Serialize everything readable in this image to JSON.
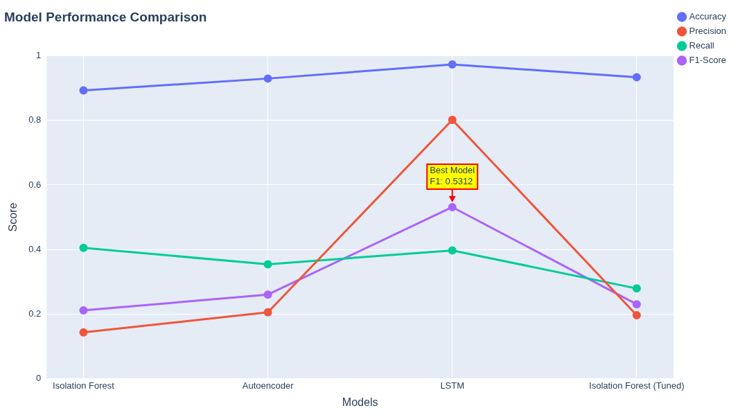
{
  "chart_data": {
    "type": "line",
    "title": "Model Performance Comparison",
    "xlabel": "Models",
    "ylabel": "Score",
    "categories": [
      "Isolation Forest",
      "Autoencoder",
      "LSTM",
      "Isolation Forest (Tuned)"
    ],
    "series": [
      {
        "name": "Accuracy",
        "color": "#636efa",
        "values": [
          0.893,
          0.93,
          0.974,
          0.934
        ]
      },
      {
        "name": "Precision",
        "color": "#ef553b",
        "values": [
          0.143,
          0.205,
          0.802,
          0.196
        ]
      },
      {
        "name": "Recall",
        "color": "#00cc96",
        "values": [
          0.405,
          0.354,
          0.397,
          0.279
        ]
      },
      {
        "name": "F1-Score",
        "color": "#ab63fa",
        "values": [
          0.211,
          0.26,
          0.5312,
          0.23
        ]
      }
    ],
    "ylim": [
      0,
      1
    ],
    "yticks": [
      0,
      0.2,
      0.4,
      0.6,
      0.8,
      1
    ],
    "annotations": [
      {
        "text": "Best Model\nF1: 0.5312",
        "x": "LSTM",
        "y": 0.5312
      }
    ],
    "grid": true,
    "legend": "right",
    "marker": "circle",
    "line_style": "solid"
  }
}
